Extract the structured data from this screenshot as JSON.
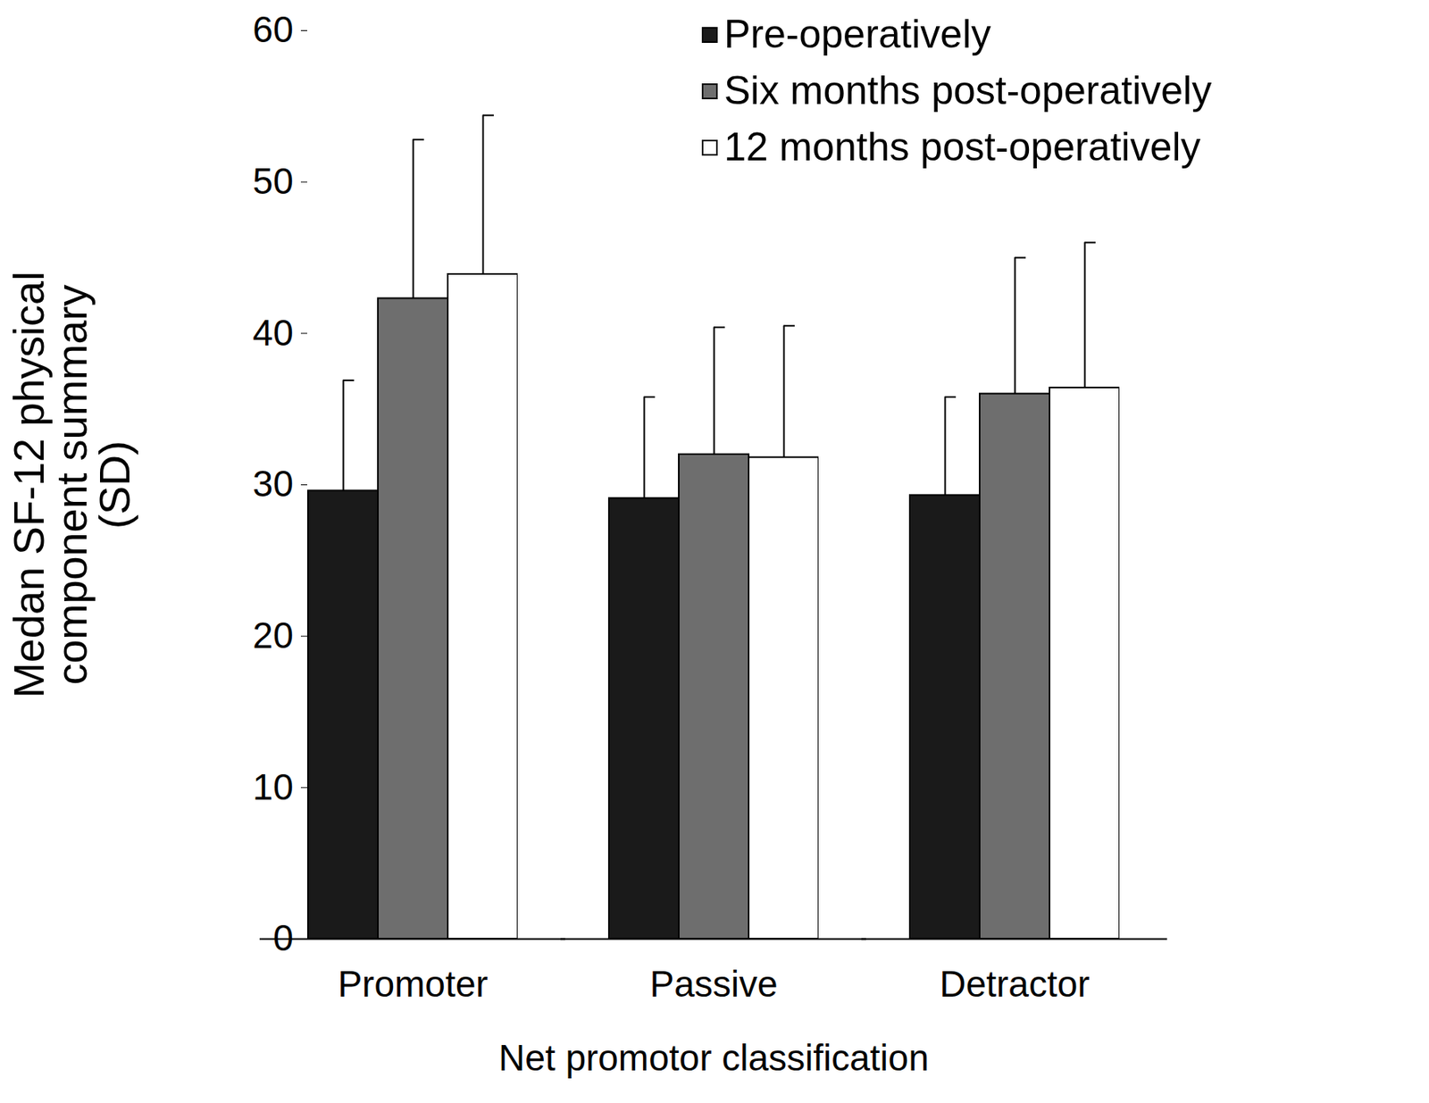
{
  "chart_data": {
    "type": "bar",
    "x_label": "Net promotor classification",
    "y_label": "Medan SF-12 physical component summary (SD)",
    "categories": [
      "Promoter",
      "Passive",
      "Detractor"
    ],
    "series": [
      {
        "name": "Pre-operatively",
        "color": "#1a1a1a",
        "values": [
          29.6,
          29.1,
          29.3
        ],
        "sd": [
          7.3,
          6.7,
          6.5
        ]
      },
      {
        "name": "Six months post-operatively",
        "color": "#6e6e6e",
        "values": [
          42.3,
          32.0,
          36.0
        ],
        "sd": [
          10.5,
          8.4,
          9.0
        ]
      },
      {
        "name": "12 months post-operatively",
        "color": "#ffffff",
        "values": [
          43.9,
          31.8,
          36.4
        ],
        "sd": [
          10.5,
          8.7,
          9.6
        ]
      }
    ],
    "ylim": [
      0,
      60
    ],
    "yticks": [
      0,
      10,
      20,
      30,
      40,
      50,
      60
    ],
    "legend": "upper right"
  }
}
